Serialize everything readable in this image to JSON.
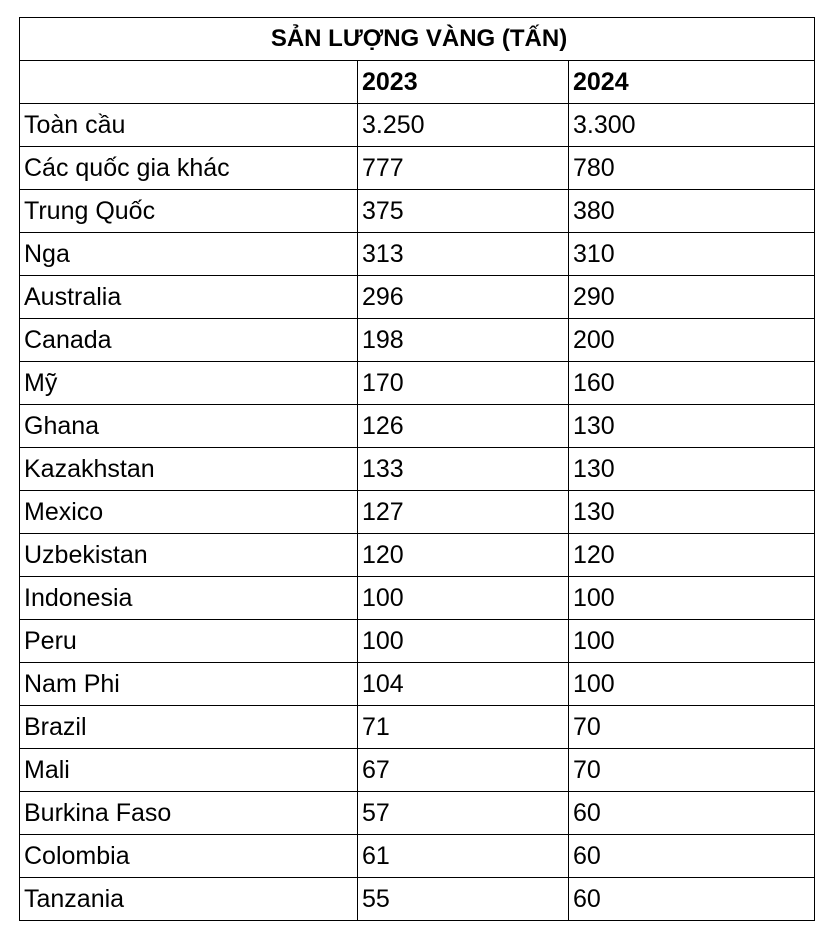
{
  "table": {
    "title": "SẢN LƯỢNG VÀNG (TẤN)",
    "header": [
      "2023",
      "2024"
    ],
    "rows": [
      [
        "Toàn cầu",
        "3.250",
        "3.300"
      ],
      [
        "Các quốc gia khác",
        "777",
        "780"
      ],
      [
        "Trung Quốc",
        "375",
        "380"
      ],
      [
        "Nga",
        "313",
        "310"
      ],
      [
        "Australia",
        "296",
        "290"
      ],
      [
        "Canada",
        "198",
        "200"
      ],
      [
        "Mỹ",
        "170",
        "160"
      ],
      [
        "Ghana",
        "126",
        "130"
      ],
      [
        "Kazakhstan",
        "133",
        "130"
      ],
      [
        "Mexico",
        "127",
        "130"
      ],
      [
        "Uzbekistan",
        "120",
        "120"
      ],
      [
        "Indonesia",
        "100",
        "100"
      ],
      [
        "Peru",
        "100",
        "100"
      ],
      [
        "Nam Phi",
        "104",
        "100"
      ],
      [
        "Brazil",
        "71",
        "70"
      ],
      [
        "Mali",
        "67",
        "70"
      ],
      [
        "Burkina Faso",
        "57",
        "60"
      ],
      [
        "Colombia",
        "61",
        "60"
      ],
      [
        "Tanzania",
        "55",
        "60"
      ]
    ]
  }
}
